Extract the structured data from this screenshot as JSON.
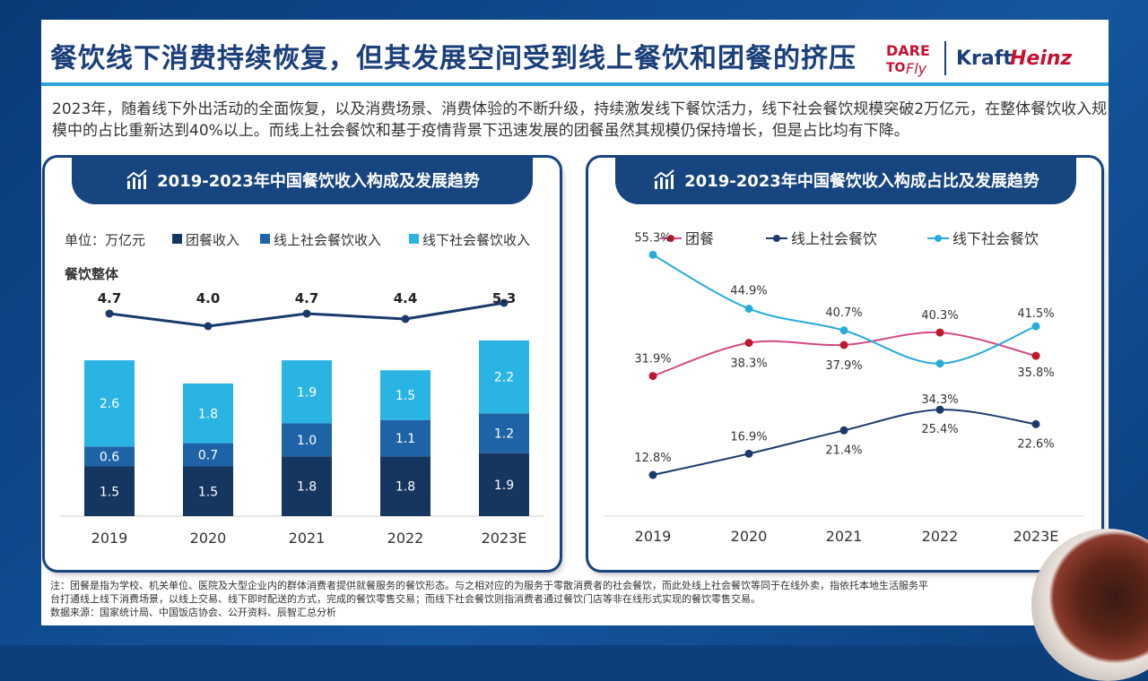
{
  "header": {
    "title": "餐饮线下消费持续恢复，但其发展空间受到线上餐饮和团餐的挤压",
    "logo_dare": "DARE",
    "logo_to": "TO",
    "logo_fly": "Fly",
    "logo_kraft": "Kraft",
    "logo_heinz": "Heinz"
  },
  "intro": "2023年，随着线下外出活动的全面恢复，以及消费场景、消费体验的不断升级，持续激发线下餐饮活力，线下社会餐饮规模突破2万亿元，在整体餐饮收入规模中的占比重新达到40%以上。而线上社会餐饮和基于疫情背景下迅速发展的团餐虽然其规模仍保持增长，但是占比均有下降。",
  "colors": {
    "dark_navy": "#15365f",
    "mid_blue": "#1e63a6",
    "light_cyan": "#2ab4e3",
    "line_navy": "#1a3a6b",
    "magenta": "#d24a83",
    "red_marker": "#c0182c",
    "cyan_line": "#27abd8",
    "title_blue": "#1a3f7a"
  },
  "chart_data": [
    {
      "type": "bar",
      "title": "2019-2023年中国餐饮收入构成及发展趋势",
      "unit_label": "单位：万亿元",
      "total_label": "餐饮整体",
      "categories": [
        "2019",
        "2020",
        "2021",
        "2022",
        "2023E"
      ],
      "series": [
        {
          "name": "团餐收入",
          "values": [
            1.5,
            1.5,
            1.8,
            1.8,
            1.9
          ]
        },
        {
          "name": "线上社会餐饮收入",
          "values": [
            0.6,
            0.7,
            1.0,
            1.1,
            1.2
          ]
        },
        {
          "name": "线下社会餐饮收入",
          "values": [
            2.6,
            1.8,
            1.9,
            1.5,
            2.2
          ]
        }
      ],
      "totals": [
        4.7,
        4.0,
        4.7,
        4.4,
        5.3
      ],
      "legend": "top",
      "grid": false
    },
    {
      "type": "line",
      "title": "2019-2023年中国餐饮收入构成占比及发展趋势",
      "categories": [
        "2019",
        "2020",
        "2021",
        "2022",
        "2023E"
      ],
      "series": [
        {
          "name": "团餐",
          "values": [
            31.9,
            38.3,
            37.9,
            40.3,
            35.8
          ],
          "labels": [
            "31.9%",
            "38.3%",
            "37.9%",
            "40.3%",
            "35.8%"
          ]
        },
        {
          "name": "线上社会餐饮",
          "values": [
            12.8,
            16.9,
            21.4,
            25.4,
            22.6
          ],
          "labels": [
            "12.8%",
            "16.9%",
            "21.4%",
            "25.4%",
            "22.6%"
          ],
          "extra_label": "34.3%"
        },
        {
          "name": "线下社会餐饮",
          "values": [
            55.3,
            44.9,
            40.7,
            34.3,
            41.5
          ],
          "labels": [
            "55.3%",
            "44.9%",
            "40.7%",
            "",
            "41.5%"
          ]
        }
      ],
      "legend": "top",
      "grid": false
    }
  ],
  "footnote": {
    "line1": "注：团餐是指为学校、机关单位、医院及大型企业内的群体消费者提供就餐服务的餐饮形态。与之相对应的为服务于零散消费者的社会餐饮，而此处线上社会餐饮等同于在线外卖，指依托本地生活服务平",
    "line2": "台打通线上线下消费场景，以线上交易、线下即时配送的方式，完成的餐饮零售交易；而线下社会餐饮则指消费者通过餐饮门店等非在线形式实现的餐饮零售交易。",
    "line3": "数据来源：国家统计局、中国饭店协会、公开资料、辰智汇总分析"
  }
}
